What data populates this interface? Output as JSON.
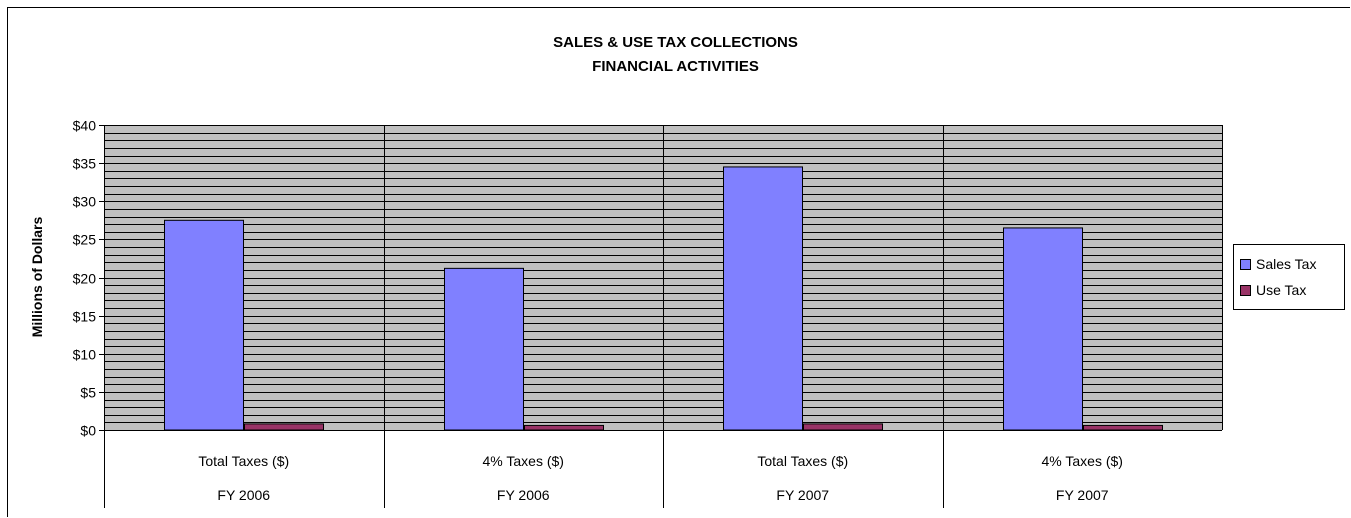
{
  "chart_data": {
    "type": "bar",
    "title": "SALES & USE TAX COLLECTIONS",
    "subtitle": "FINANCIAL ACTIVITIES",
    "ylabel": "Millions of Dollars",
    "xlabel": "",
    "ylim": [
      0,
      40
    ],
    "y_ticks": [
      0,
      5,
      10,
      15,
      20,
      25,
      30,
      35,
      40
    ],
    "y_tick_labels": [
      "$0",
      "$5",
      "$10",
      "$15",
      "$20",
      "$25",
      "$30",
      "$35",
      "$40"
    ],
    "categories": [
      {
        "label": "Total Taxes ($)",
        "group": "FY 2006"
      },
      {
        "label": "4% Taxes ($)",
        "group": "FY 2006"
      },
      {
        "label": "Total Taxes ($)",
        "group": "FY 2007"
      },
      {
        "label": "4% Taxes ($)",
        "group": "FY 2007"
      }
    ],
    "series": [
      {
        "name": "Sales Tax",
        "color": "#8080ff",
        "values": [
          27.5,
          21.2,
          34.5,
          26.5
        ]
      },
      {
        "name": "Use Tax",
        "color": "#993366",
        "values": [
          0.8,
          0.6,
          0.8,
          0.6
        ]
      }
    ],
    "grid": true,
    "plot_background": "#c0c0c0",
    "legend_position": "right"
  }
}
